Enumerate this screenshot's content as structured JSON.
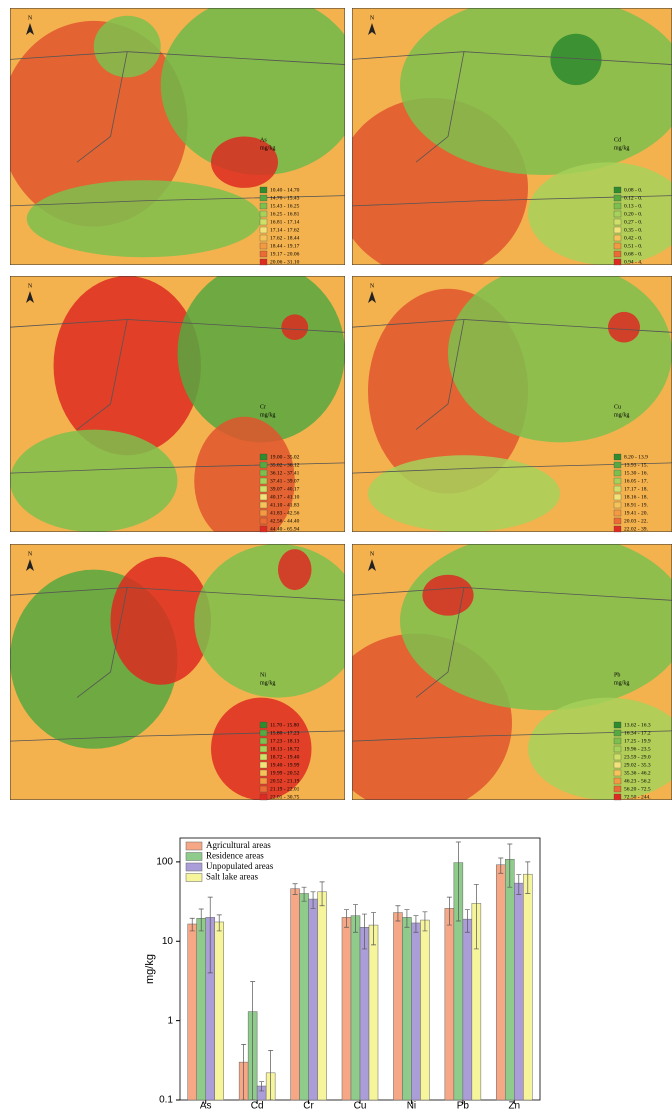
{
  "maps": [
    {
      "element": "As",
      "unit": "mg/kg",
      "north_label": "N",
      "legend": [
        "10.40 - 14.70",
        "14.70 - 15.43",
        "15.43 - 16.25",
        "16.25 - 16.81",
        "16.81 - 17.14",
        "17.14 - 17.62",
        "17.62 - 18.44",
        "18.44 - 19.17",
        "19.17 - 20.06",
        "20.06 - 31.10"
      ]
    },
    {
      "element": "Cd",
      "unit": "mg/kg",
      "north_label": "N",
      "legend": [
        "0.08 - 0.",
        "0.12 - 0.",
        "0.13 - 0.",
        "0.20 - 0.",
        "0.27 - 0.",
        "0.35 - 0.",
        "0.42 - 0.",
        "0.51 - 0.",
        "0.68 - 0.",
        "0.94 - 4."
      ]
    },
    {
      "element": "Cr",
      "unit": "mg/kg",
      "north_label": "N",
      "legend": [
        "19.00 - 35.02",
        "35.02 - 36.12",
        "36.12 - 37.41",
        "37.41 - 39.07",
        "39.07 - 40.17",
        "40.17 - 41.10",
        "41.10 - 41.83",
        "41.83 - 42.56",
        "42.56 - 44.40",
        "44.40 - 65.94"
      ]
    },
    {
      "element": "Cu",
      "unit": "mg/kg",
      "north_label": "N",
      "legend": [
        "8.20 - 13.9",
        "13.93 - 15.",
        "15.30 - 16.",
        "16.05 - 17.",
        "17.17 - 18.",
        "18.16 - 18.",
        "18.91 - 19.",
        "19.41 - 20.",
        "20.03 - 22.",
        "22.02 - 39."
      ]
    },
    {
      "element": "Ni",
      "unit": "mg/kg",
      "north_label": "N",
      "legend": [
        "11.70 - 15.80",
        "15.80 - 17.23",
        "17.23 - 18.13",
        "18.13 - 18.72",
        "18.72 - 19.40",
        "19.40 - 19.99",
        "19.99 - 20.52",
        "20.52 - 21.19",
        "21.19 - 22.01",
        "22.01 - 30.75"
      ]
    },
    {
      "element": "Pb",
      "unit": "mg/kg",
      "north_label": "N",
      "legend": [
        "13.62 - 16.3",
        "16.34 - 17.2",
        "17.25 - 19.9",
        "19.96 - 23.5",
        "23.59 - 29.0",
        "29.02 - 35.3",
        "35.36 - 46.2",
        "46.23 - 56.2",
        "56.20 - 72.5",
        "72.50 - 244."
      ]
    }
  ],
  "chart_data": {
    "type": "bar",
    "y_label": "mg/kg",
    "log_scale": true,
    "categories": [
      "As",
      "Cd",
      "Cr",
      "Cu",
      "Ni",
      "Pb",
      "Zn"
    ],
    "series": [
      {
        "name": "Agricultural areas",
        "color": "#f6a886",
        "values": [
          16.5,
          0.3,
          46,
          20,
          23,
          26,
          92
        ],
        "errors": [
          3,
          0.2,
          7,
          5,
          5,
          10,
          20
        ]
      },
      {
        "name": "Residence areas",
        "color": "#8fcc8c",
        "values": [
          19.5,
          1.3,
          40,
          21,
          20,
          98,
          108
        ],
        "errors": [
          6,
          1.8,
          8,
          8,
          5,
          80,
          60
        ]
      },
      {
        "name": "Unpopulated areas",
        "color": "#ab9dd8",
        "values": [
          20,
          0.15,
          34,
          15,
          17,
          19,
          54
        ],
        "errors": [
          16,
          0.02,
          8,
          7,
          4,
          6,
          15
        ]
      },
      {
        "name": "Salt lake areas",
        "color": "#f6f59c",
        "values": [
          17.5,
          0.22,
          42,
          16,
          18.5,
          30,
          70
        ],
        "errors": [
          4,
          0.2,
          14,
          7,
          5,
          22,
          30
        ]
      }
    ],
    "ylim": [
      0.1,
      200
    ],
    "yticks": [
      0.1,
      1,
      10,
      100
    ]
  }
}
